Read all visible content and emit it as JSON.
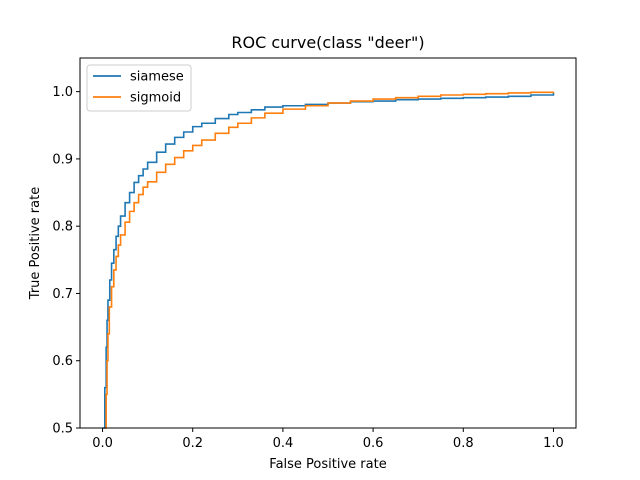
{
  "chart_data": {
    "type": "line",
    "title": "ROC curve(class \"deer\")",
    "xlabel": "False Positive rate",
    "ylabel": "True Positive rate",
    "xlim": [
      -0.05,
      1.05
    ],
    "ylim": [
      0.5,
      1.05
    ],
    "xticks": [
      "0.0",
      "0.2",
      "0.4",
      "0.6",
      "0.8",
      "1.0"
    ],
    "yticks": [
      "0.5",
      "0.6",
      "0.7",
      "0.8",
      "0.9",
      "1.0"
    ],
    "grid": false,
    "legend_position": "top-left",
    "series": [
      {
        "name": "siamese",
        "color": "#1f77b4",
        "points": [
          [
            0.0,
            0.5
          ],
          [
            0.005,
            0.56
          ],
          [
            0.008,
            0.62
          ],
          [
            0.01,
            0.66
          ],
          [
            0.012,
            0.69
          ],
          [
            0.016,
            0.72
          ],
          [
            0.02,
            0.745
          ],
          [
            0.025,
            0.765
          ],
          [
            0.03,
            0.785
          ],
          [
            0.035,
            0.8
          ],
          [
            0.04,
            0.815
          ],
          [
            0.05,
            0.835
          ],
          [
            0.06,
            0.85
          ],
          [
            0.07,
            0.865
          ],
          [
            0.08,
            0.875
          ],
          [
            0.09,
            0.885
          ],
          [
            0.1,
            0.895
          ],
          [
            0.12,
            0.91
          ],
          [
            0.14,
            0.922
          ],
          [
            0.16,
            0.932
          ],
          [
            0.18,
            0.94
          ],
          [
            0.2,
            0.948
          ],
          [
            0.22,
            0.953
          ],
          [
            0.25,
            0.96
          ],
          [
            0.28,
            0.966
          ],
          [
            0.3,
            0.969
          ],
          [
            0.33,
            0.973
          ],
          [
            0.36,
            0.977
          ],
          [
            0.4,
            0.979
          ],
          [
            0.45,
            0.981
          ],
          [
            0.5,
            0.983
          ],
          [
            0.55,
            0.985
          ],
          [
            0.6,
            0.986
          ],
          [
            0.65,
            0.988
          ],
          [
            0.7,
            0.989
          ],
          [
            0.75,
            0.99
          ],
          [
            0.8,
            0.991
          ],
          [
            0.85,
            0.992
          ],
          [
            0.9,
            0.993
          ],
          [
            0.95,
            0.995
          ],
          [
            1.0,
            0.998
          ]
        ]
      },
      {
        "name": "sigmoid",
        "color": "#ff7f0e",
        "points": [
          [
            0.005,
            0.5
          ],
          [
            0.008,
            0.55
          ],
          [
            0.01,
            0.6
          ],
          [
            0.012,
            0.64
          ],
          [
            0.015,
            0.68
          ],
          [
            0.02,
            0.71
          ],
          [
            0.025,
            0.735
          ],
          [
            0.03,
            0.755
          ],
          [
            0.035,
            0.772
          ],
          [
            0.04,
            0.787
          ],
          [
            0.05,
            0.806
          ],
          [
            0.06,
            0.822
          ],
          [
            0.07,
            0.835
          ],
          [
            0.08,
            0.847
          ],
          [
            0.09,
            0.858
          ],
          [
            0.1,
            0.866
          ],
          [
            0.12,
            0.88
          ],
          [
            0.14,
            0.892
          ],
          [
            0.16,
            0.902
          ],
          [
            0.18,
            0.912
          ],
          [
            0.2,
            0.92
          ],
          [
            0.22,
            0.928
          ],
          [
            0.25,
            0.938
          ],
          [
            0.28,
            0.947
          ],
          [
            0.3,
            0.953
          ],
          [
            0.33,
            0.961
          ],
          [
            0.36,
            0.968
          ],
          [
            0.4,
            0.974
          ],
          [
            0.45,
            0.979
          ],
          [
            0.5,
            0.983
          ],
          [
            0.55,
            0.986
          ],
          [
            0.6,
            0.989
          ],
          [
            0.65,
            0.991
          ],
          [
            0.7,
            0.993
          ],
          [
            0.75,
            0.995
          ],
          [
            0.8,
            0.996
          ],
          [
            0.85,
            0.997
          ],
          [
            0.9,
            0.998
          ],
          [
            0.95,
            0.999
          ],
          [
            1.0,
            1.0
          ]
        ]
      }
    ]
  }
}
